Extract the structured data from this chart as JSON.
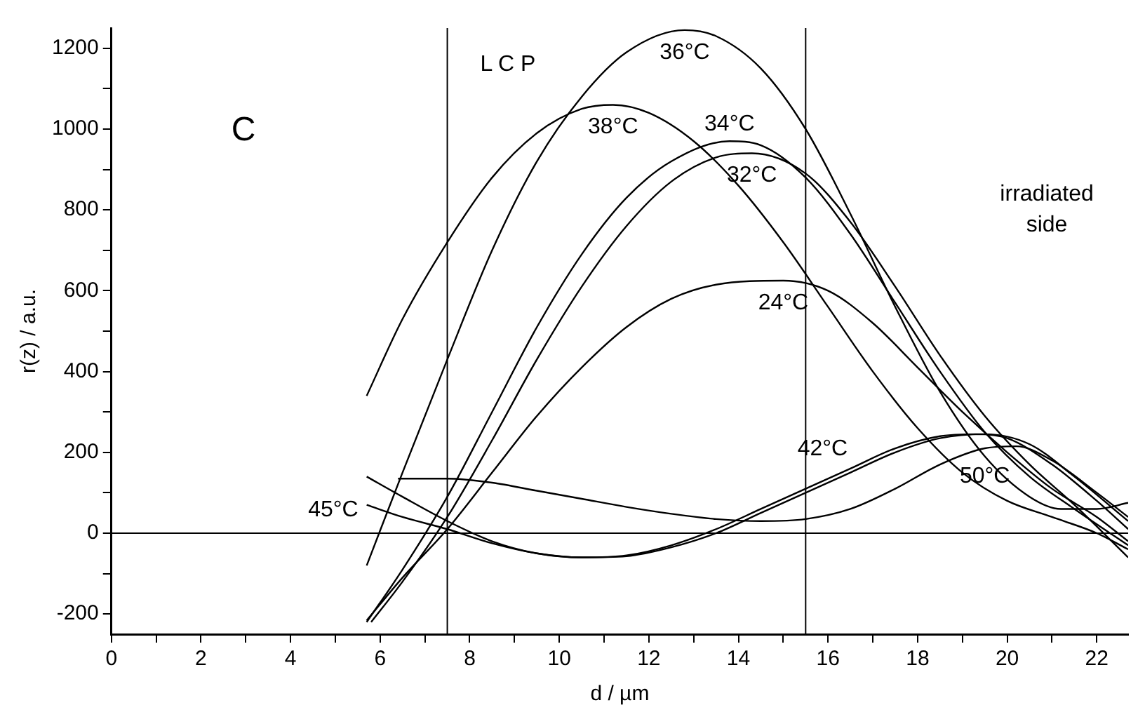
{
  "chart_data": {
    "type": "line",
    "xlabel": "d / µm",
    "ylabel": "r(z) / a.u.",
    "xlim": [
      0,
      22.7
    ],
    "ylim": [
      -250,
      1250
    ],
    "xticks": [
      0,
      {
        "value": 1,
        "label": null
      },
      2,
      {
        "value": 3,
        "label": null
      },
      4,
      {
        "value": 5,
        "label": null
      },
      6,
      {
        "value": 7,
        "label": null
      },
      8,
      {
        "value": 9,
        "label": null
      },
      10,
      {
        "value": 11,
        "label": null
      },
      12,
      {
        "value": 13,
        "label": null
      },
      14,
      {
        "value": 15,
        "label": null
      },
      16,
      {
        "value": 17,
        "label": null
      },
      18,
      {
        "value": 19,
        "label": null
      },
      20,
      {
        "value": 21,
        "label": null
      },
      22
    ],
    "yticks": [
      -200,
      {
        "value": -100,
        "label": null
      },
      0,
      {
        "value": 100,
        "label": null
      },
      200,
      {
        "value": 300,
        "label": null
      },
      400,
      {
        "value": 500,
        "label": null
      },
      600,
      {
        "value": 700,
        "label": null
      },
      800,
      {
        "value": 900,
        "label": null
      },
      1000,
      {
        "value": 1100,
        "label": null
      },
      1200
    ],
    "grid": false,
    "legend": false,
    "marker": "none",
    "line_style": "solid",
    "ref_lines": [
      {
        "axis": "x",
        "value": 7.5,
        "color": "#000000"
      },
      {
        "axis": "x",
        "value": 15.5,
        "color": "#000000"
      },
      {
        "axis": "y",
        "value": 0,
        "color": "#000000"
      }
    ],
    "annotations": [
      "C",
      "L C P",
      "irradiated side"
    ],
    "series": [
      {
        "name": "36°C",
        "color": "#000000",
        "x": [
          5.7,
          6.5,
          7.5,
          8.5,
          9.5,
          10.5,
          11.5,
          12.8,
          13.5,
          14.5,
          15.5,
          16.5,
          17.5,
          18.5,
          19.5,
          20.5,
          21.2,
          22,
          22.7
        ],
        "values": [
          -80,
          150,
          430,
          700,
          920,
          1080,
          1190,
          1245,
          1230,
          1150,
          1000,
          790,
          560,
          350,
          190,
          90,
          60,
          60,
          75
        ]
      },
      {
        "name": "38°C",
        "color": "#000000",
        "x": [
          5.7,
          6.5,
          7.5,
          8.5,
          9.5,
          10.5,
          11.2,
          12,
          13,
          14,
          15,
          16,
          17,
          18,
          19,
          20,
          21,
          22,
          22.7
        ],
        "values": [
          340,
          530,
          720,
          880,
          990,
          1050,
          1060,
          1040,
          970,
          860,
          720,
          560,
          400,
          260,
          150,
          80,
          40,
          0,
          -40
        ]
      },
      {
        "name": "34°C",
        "color": "#000000",
        "x": [
          5.7,
          6.5,
          7.5,
          8.5,
          9.5,
          10.5,
          11.5,
          12.5,
          13.8,
          14.5,
          15.5,
          16.5,
          17.5,
          18.5,
          19.5,
          20.5,
          21.5,
          22.7
        ],
        "values": [
          -220,
          -90,
          90,
          300,
          510,
          690,
          830,
          920,
          970,
          960,
          880,
          740,
          570,
          400,
          250,
          140,
          60,
          -30
        ]
      },
      {
        "name": "32°C",
        "color": "#000000",
        "x": [
          5.8,
          6.5,
          7.5,
          8.5,
          9.5,
          10.5,
          11.5,
          12.5,
          13.5,
          14.3,
          15.5,
          16.5,
          17.5,
          18.5,
          19.5,
          20.5,
          21.5,
          22.7
        ],
        "values": [
          -220,
          -120,
          40,
          230,
          430,
          610,
          760,
          870,
          930,
          940,
          890,
          770,
          610,
          440,
          290,
          170,
          70,
          -60
        ]
      },
      {
        "name": "24°C",
        "color": "#000000",
        "x": [
          5.7,
          6.5,
          7.5,
          8.5,
          9.5,
          10.5,
          11.5,
          12.5,
          13.5,
          15,
          16,
          17,
          18,
          19,
          20,
          21,
          22,
          22.7
        ],
        "values": [
          -216,
          -110,
          10,
          150,
          290,
          410,
          510,
          580,
          615,
          625,
          600,
          520,
          410,
          300,
          200,
          110,
          40,
          -20
        ]
      },
      {
        "name": "42°C",
        "color": "#000000",
        "x": [
          5.7,
          6.5,
          7.5,
          8.5,
          9.5,
          10.5,
          11.5,
          12.5,
          13.5,
          14.5,
          15.5,
          16.5,
          17.5,
          18.5,
          19.3,
          20,
          21,
          22,
          22.7
        ],
        "values": [
          140,
          90,
          30,
          -20,
          -50,
          -60,
          -55,
          -30,
          10,
          60,
          110,
          160,
          210,
          240,
          245,
          235,
          170,
          80,
          10
        ]
      },
      {
        "name": "45°C",
        "color": "#000000",
        "x": [
          5.7,
          6.5,
          7.5,
          8.5,
          9.5,
          10.5,
          11.5,
          12.5,
          13.5,
          14.5,
          15.5,
          16.5,
          17.5,
          18.5,
          19.5,
          20.5,
          21.5,
          22.7
        ],
        "values": [
          70,
          40,
          10,
          -25,
          -50,
          -60,
          -57,
          -35,
          0,
          50,
          100,
          150,
          200,
          235,
          245,
          220,
          140,
          30
        ]
      },
      {
        "name": "50°C",
        "color": "#000000",
        "x": [
          6.4,
          7.5,
          8.5,
          9.5,
          10.5,
          11.5,
          12.5,
          13.5,
          14.5,
          15.5,
          16.5,
          17.5,
          18.5,
          19.5,
          20.2,
          21,
          22,
          22.7
        ],
        "values": [
          135,
          135,
          125,
          105,
          85,
          65,
          48,
          35,
          30,
          35,
          60,
          110,
          170,
          210,
          215,
          180,
          100,
          40
        ]
      }
    ]
  }
}
